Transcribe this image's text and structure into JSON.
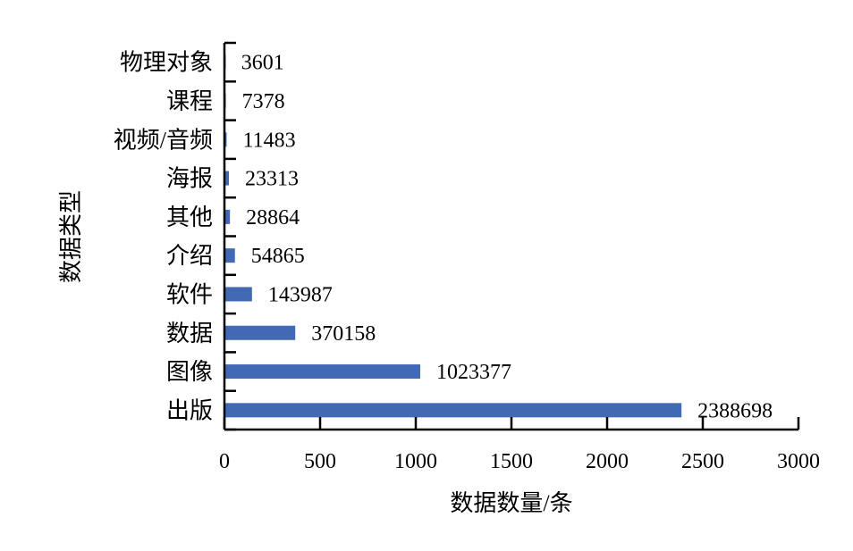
{
  "chart_data": {
    "type": "bar",
    "orientation": "horizontal",
    "categories": [
      "物理对象",
      "课程",
      "视频/音频",
      "海报",
      "其他",
      "介绍",
      "软件",
      "数据",
      "图像",
      "出版"
    ],
    "values": [
      3601,
      7378,
      11483,
      23313,
      28864,
      54865,
      143987,
      370158,
      1023377,
      2388698
    ],
    "data_labels": [
      "3601",
      "7378",
      "11483",
      "23313",
      "28864",
      "54865",
      "143987",
      "370158",
      "1023377",
      "2388698"
    ],
    "xlabel": "数据数量/条",
    "ylabel": "数据类型",
    "xlim": [
      0,
      3000
    ],
    "xticks": [
      0,
      500,
      1000,
      1500,
      2000,
      2500,
      3000
    ],
    "value_scale": 1000,
    "bar_color": "#4169b4",
    "grid": false,
    "legend": "none"
  }
}
